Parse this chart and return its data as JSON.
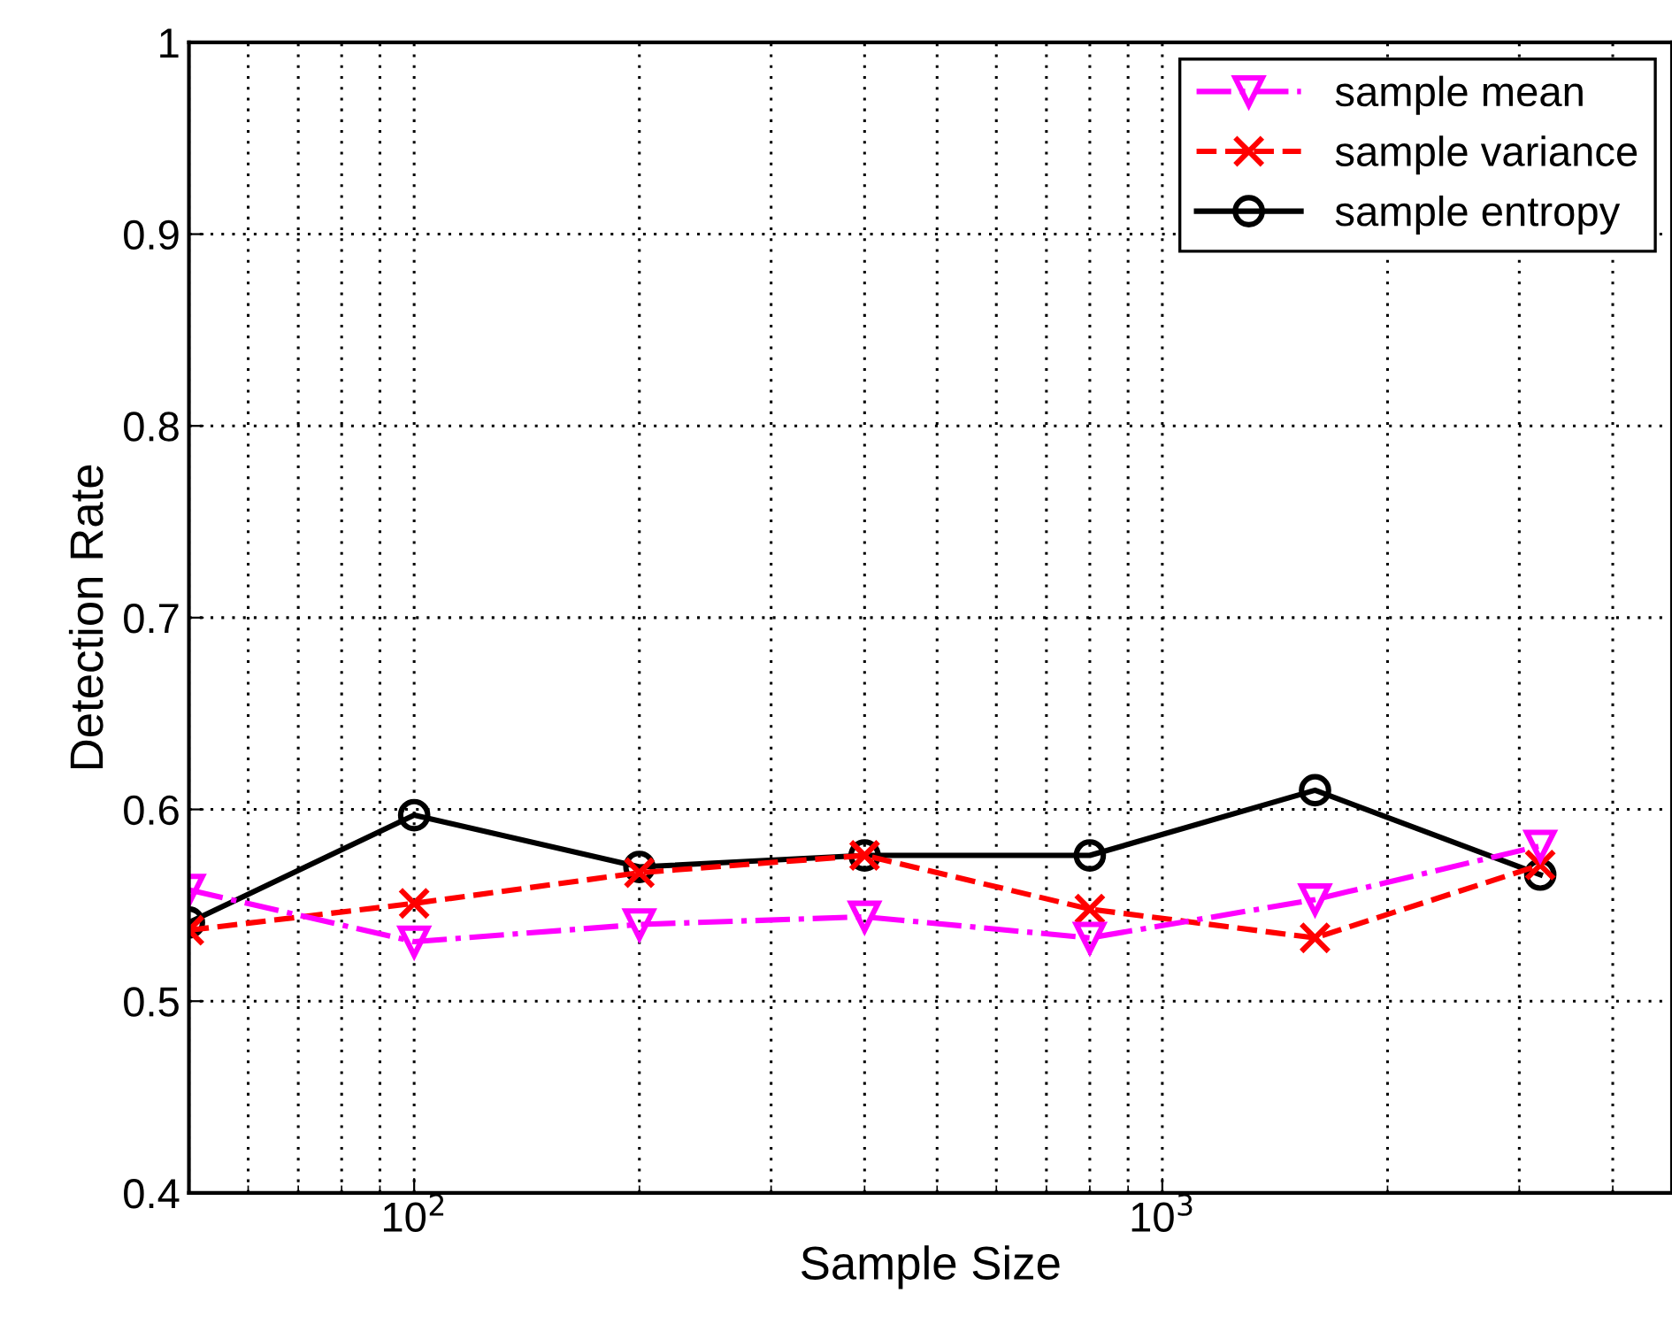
{
  "chart_data": {
    "type": "line",
    "xlabel": "Sample Size",
    "ylabel": "Detection Rate",
    "x": [
      50,
      100,
      200,
      400,
      800,
      1600,
      3200
    ],
    "series": [
      {
        "name": "sample mean",
        "color": "#ff00ff",
        "marker": "triangle",
        "line_style": "dashdot",
        "values": [
          0.558,
          0.531,
          0.54,
          0.544,
          0.533,
          0.553,
          0.581
        ]
      },
      {
        "name": "sample variance",
        "color": "#ff0000",
        "marker": "cross",
        "line_style": "dashed",
        "values": [
          0.537,
          0.551,
          0.567,
          0.576,
          0.548,
          0.533,
          0.571
        ]
      },
      {
        "name": "sample entropy",
        "color": "#000000",
        "marker": "circle",
        "line_style": "solid",
        "values": [
          0.541,
          0.597,
          0.57,
          0.576,
          0.576,
          0.61,
          0.566
        ]
      }
    ],
    "log": "x",
    "xlim": [
      50,
      4800
    ],
    "xticks": [
      {
        "value": 100,
        "label": "10$^{2}$"
      },
      {
        "value": 1000,
        "label": "10$^{3}$"
      }
    ],
    "ylim": [
      0.4,
      1
    ],
    "yticks": [
      0.4,
      0.5,
      0.6,
      0.7,
      0.8,
      0.9,
      1
    ],
    "grid": true,
    "legend": "top right"
  }
}
